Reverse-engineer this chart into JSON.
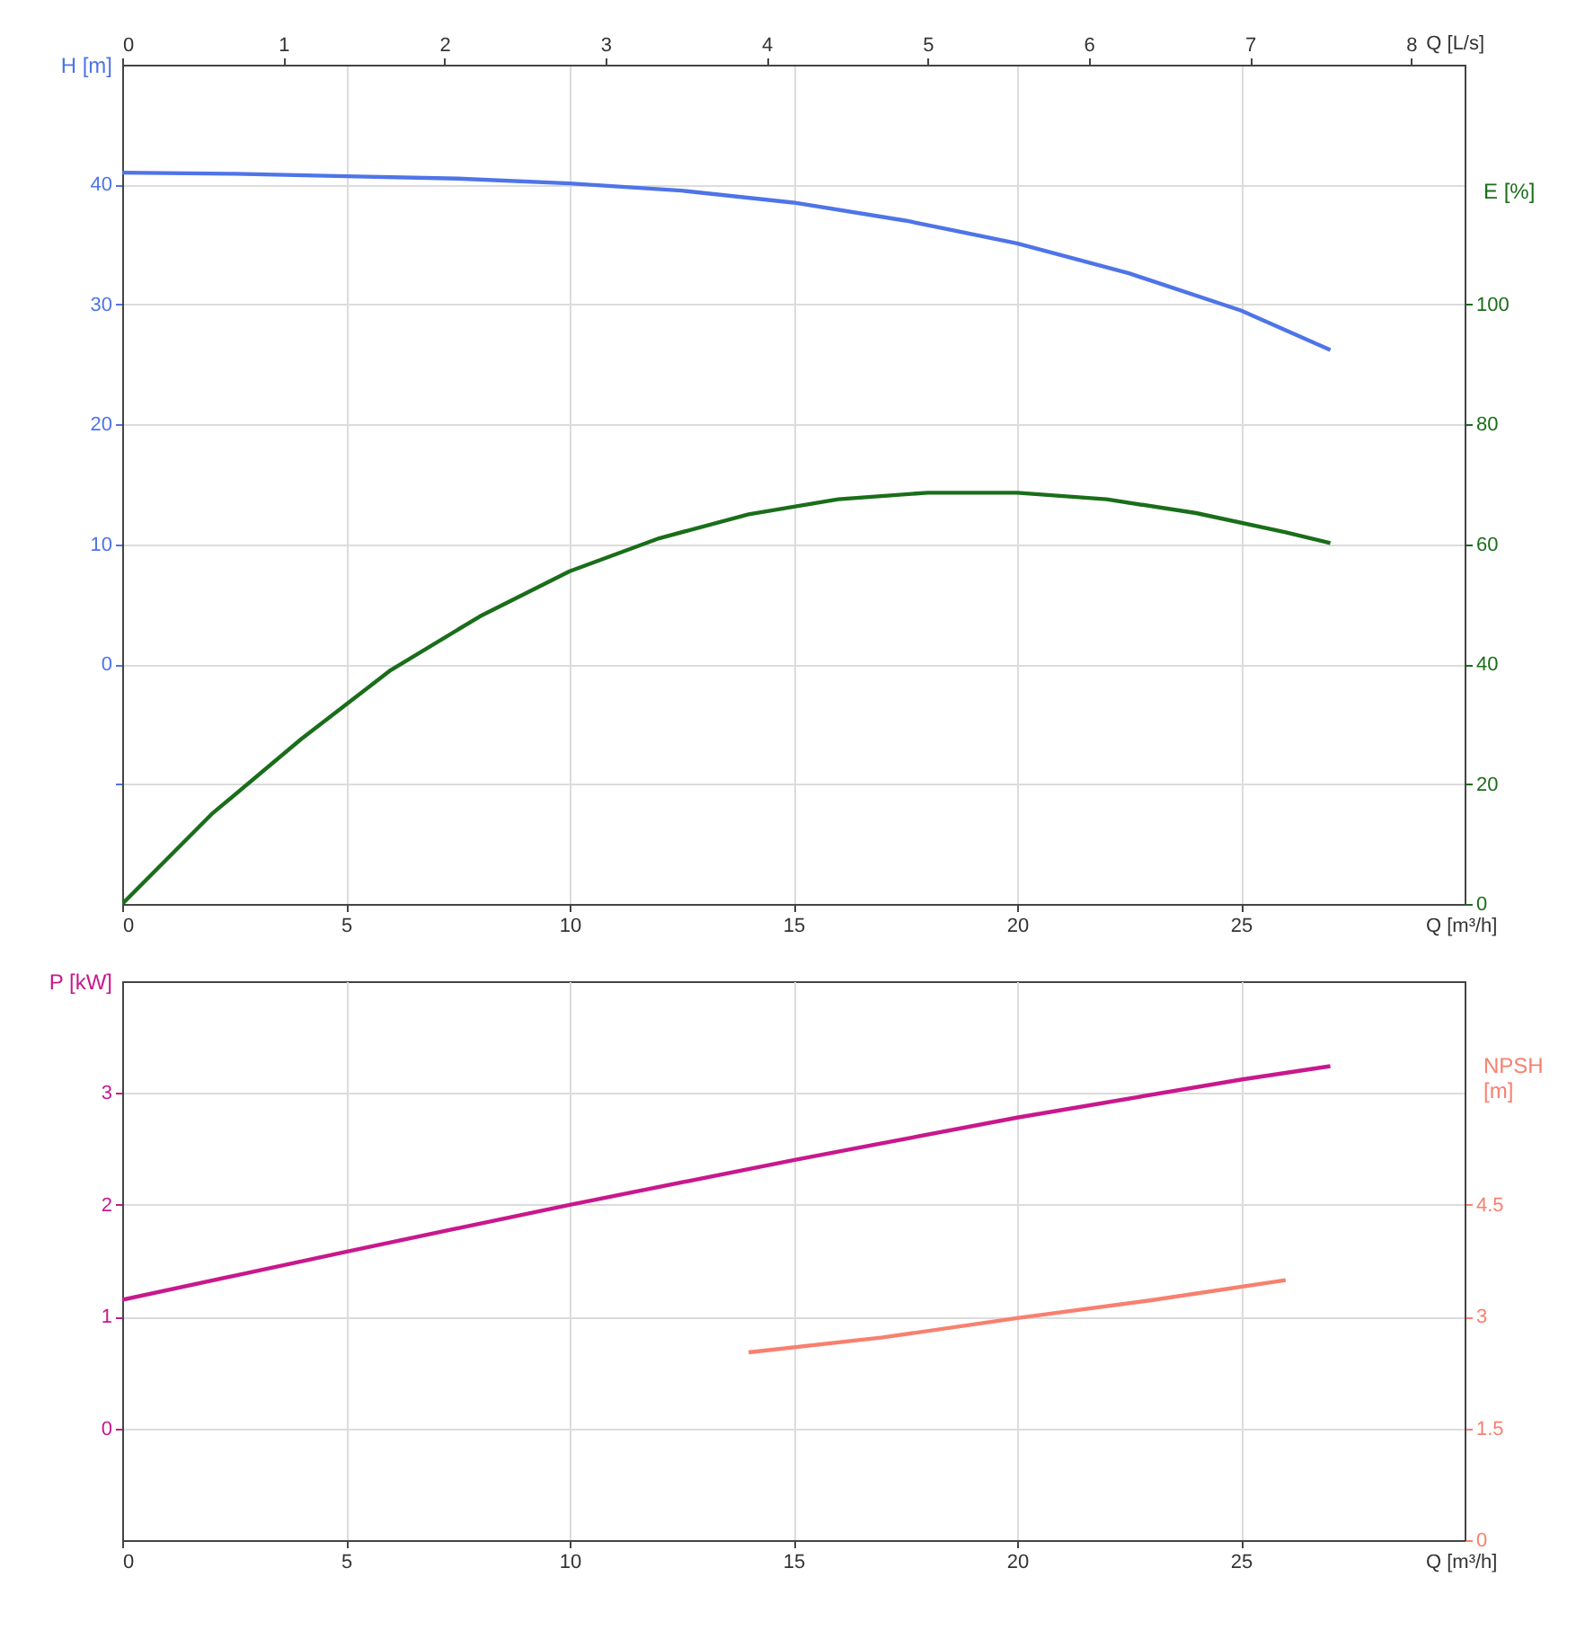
{
  "chart_data": [
    {
      "type": "line",
      "xlabel": "Q [m³/h]",
      "x2label": "Q [L/s]",
      "ylabel": "H [m]",
      "y2label": "E [%]",
      "xlim": [
        0,
        30
      ],
      "xticks": [
        0,
        5,
        10,
        15,
        20,
        25
      ],
      "x2lim": [
        0,
        8.333
      ],
      "x2ticks": [
        0,
        1,
        2,
        3,
        4,
        5,
        6,
        7,
        8
      ],
      "ylim": [
        -20,
        50
      ],
      "yticks": [
        {
          "value": -10,
          "label": null
        },
        0,
        10,
        20,
        30,
        40
      ],
      "y2lim": [
        0,
        140
      ],
      "y2ticks": [
        0,
        20,
        40,
        60,
        80,
        100
      ],
      "grid": true,
      "marker": "none",
      "series": [
        {
          "color": "#4f74e8",
          "x": [
            0,
            2.5,
            5,
            7.5,
            10,
            12.5,
            15,
            17.5,
            20,
            22.5,
            25,
            27
          ],
          "values": [
            41,
            40.9,
            40.7,
            40.5,
            40.1,
            39.5,
            38.5,
            37,
            35.1,
            32.6,
            29.5,
            26.2
          ]
        },
        {
          "color": "#1a6e1a",
          "axis": "y2",
          "x": [
            0,
            2,
            4,
            6,
            8,
            10,
            12,
            14,
            16,
            18,
            20,
            22,
            24,
            26,
            27
          ],
          "values": [
            0,
            15,
            27.5,
            39,
            48,
            55.5,
            61,
            65,
            67.5,
            68.6,
            68.6,
            67.5,
            65.2,
            62,
            60.2
          ]
        }
      ]
    },
    {
      "type": "line",
      "xlabel": "Q [m³/h]",
      "ylabel": "P [kW]",
      "y2label": "NPSH [m]",
      "xlim": [
        0,
        30
      ],
      "xticks": [
        0,
        5,
        10,
        15,
        20,
        25
      ],
      "ylim": [
        -1,
        4
      ],
      "yticks": [
        0,
        1,
        2,
        3
      ],
      "y2lim": [
        0,
        7.5
      ],
      "y2ticks": [
        0,
        1.5,
        3,
        4.5
      ],
      "grid": true,
      "marker": "none",
      "series": [
        {
          "color": "#c8188c",
          "x": [
            0,
            5,
            10,
            15,
            20,
            25,
            27
          ],
          "values": [
            1.15,
            1.58,
            2.0,
            2.4,
            2.78,
            3.12,
            3.24
          ]
        },
        {
          "color": "#f88070",
          "axis": "y2",
          "x": [
            14,
            17,
            20,
            23,
            26
          ],
          "values": [
            2.52,
            2.72,
            2.98,
            3.22,
            3.49
          ]
        }
      ]
    }
  ]
}
